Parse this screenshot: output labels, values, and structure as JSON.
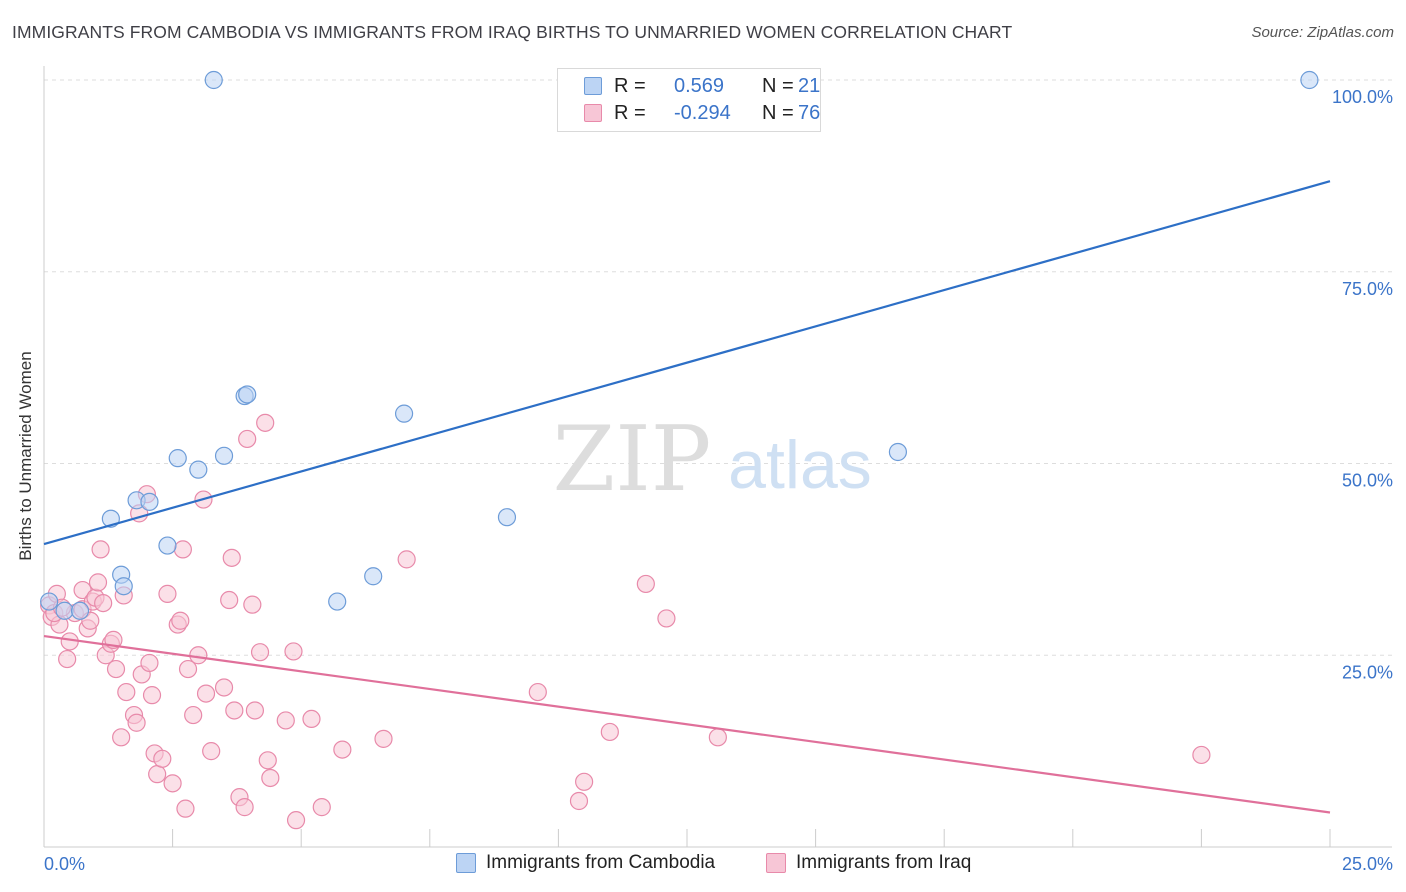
{
  "title": "IMMIGRANTS FROM CAMBODIA VS IMMIGRANTS FROM IRAQ BIRTHS TO UNMARRIED WOMEN CORRELATION CHART",
  "source": "Source: ZipAtlas.com",
  "watermark": {
    "zip": "ZIP",
    "atlas": "atlas"
  },
  "legend": {
    "rows": [
      {
        "r_label": "R =",
        "r_value": "0.569",
        "n_label": "N =",
        "n_value": "21"
      },
      {
        "r_label": "R =",
        "r_value": "-0.294",
        "n_label": "N =",
        "n_value": "76"
      }
    ]
  },
  "bottom_legend": [
    "Immigrants from Cambodia",
    "Immigrants from Iraq"
  ],
  "colors": {
    "cambodia_fill": "#bcd4f4",
    "cambodia_stroke": "#6d9cd8",
    "cambodia_line": "#2d6fc6",
    "iraq_fill": "#f7c6d6",
    "iraq_stroke": "#e88aaa",
    "iraq_line": "#e0709a",
    "value_text": "#3b74c9",
    "grid": "#dddddd"
  },
  "chart_data": {
    "type": "scatter",
    "title": "IMMIGRANTS FROM CAMBODIA VS IMMIGRANTS FROM IRAQ BIRTHS TO UNMARRIED WOMEN CORRELATION CHART",
    "xlabel": "",
    "ylabel": "Births to Unmarried Women",
    "xlim": [
      0,
      25
    ],
    "ylim": [
      0,
      100
    ],
    "x_tick_labels": [
      "0.0%",
      "25.0%"
    ],
    "y_tick_labels": [
      "25.0%",
      "50.0%",
      "75.0%",
      "100.0%"
    ],
    "y_ticks": [
      25,
      50,
      75,
      100
    ],
    "grid": true,
    "legend_position": "top-center",
    "series": [
      {
        "name": "Immigrants from Cambodia",
        "R": 0.569,
        "N": 21,
        "trend": {
          "x": [
            0,
            25
          ],
          "y": [
            39.5,
            86.8
          ]
        },
        "points": [
          {
            "x": 3.3,
            "y": 100
          },
          {
            "x": 24.6,
            "y": 100
          },
          {
            "x": 3.9,
            "y": 58.8
          },
          {
            "x": 3.95,
            "y": 59.0
          },
          {
            "x": 7.0,
            "y": 56.5
          },
          {
            "x": 16.6,
            "y": 51.5
          },
          {
            "x": 2.6,
            "y": 50.7
          },
          {
            "x": 3.5,
            "y": 51.0
          },
          {
            "x": 3.0,
            "y": 49.2
          },
          {
            "x": 1.8,
            "y": 45.2
          },
          {
            "x": 2.05,
            "y": 45.0
          },
          {
            "x": 1.3,
            "y": 42.8
          },
          {
            "x": 9.0,
            "y": 43.0
          },
          {
            "x": 2.4,
            "y": 39.3
          },
          {
            "x": 1.5,
            "y": 35.5
          },
          {
            "x": 1.55,
            "y": 34.0
          },
          {
            "x": 6.4,
            "y": 35.3
          },
          {
            "x": 5.7,
            "y": 32.0
          },
          {
            "x": 0.1,
            "y": 32.0
          },
          {
            "x": 0.4,
            "y": 30.8
          },
          {
            "x": 0.7,
            "y": 30.8
          }
        ]
      },
      {
        "name": "Immigrants from Iraq",
        "R": -0.294,
        "N": 76,
        "trend": {
          "x": [
            0,
            25
          ],
          "y": [
            27.5,
            4.5
          ]
        },
        "points": [
          {
            "x": 0.1,
            "y": 31.5
          },
          {
            "x": 0.15,
            "y": 30.0
          },
          {
            "x": 0.25,
            "y": 33.0
          },
          {
            "x": 0.3,
            "y": 29.0
          },
          {
            "x": 0.45,
            "y": 24.5
          },
          {
            "x": 0.5,
            "y": 26.8
          },
          {
            "x": 0.6,
            "y": 30.5
          },
          {
            "x": 0.75,
            "y": 31.0
          },
          {
            "x": 0.75,
            "y": 33.5
          },
          {
            "x": 0.85,
            "y": 28.5
          },
          {
            "x": 0.9,
            "y": 29.5
          },
          {
            "x": 0.95,
            "y": 32.0
          },
          {
            "x": 1.0,
            "y": 32.5
          },
          {
            "x": 1.05,
            "y": 34.5
          },
          {
            "x": 1.1,
            "y": 38.8
          },
          {
            "x": 1.15,
            "y": 31.8
          },
          {
            "x": 1.2,
            "y": 25.0
          },
          {
            "x": 1.3,
            "y": 26.5
          },
          {
            "x": 1.35,
            "y": 27.0
          },
          {
            "x": 1.4,
            "y": 23.2
          },
          {
            "x": 1.5,
            "y": 14.3
          },
          {
            "x": 1.55,
            "y": 32.8
          },
          {
            "x": 1.6,
            "y": 20.2
          },
          {
            "x": 1.75,
            "y": 17.2
          },
          {
            "x": 1.8,
            "y": 16.2
          },
          {
            "x": 1.85,
            "y": 43.5
          },
          {
            "x": 1.9,
            "y": 22.5
          },
          {
            "x": 2.0,
            "y": 46.0
          },
          {
            "x": 2.05,
            "y": 24.0
          },
          {
            "x": 2.1,
            "y": 19.8
          },
          {
            "x": 2.15,
            "y": 12.2
          },
          {
            "x": 2.2,
            "y": 9.5
          },
          {
            "x": 2.3,
            "y": 11.5
          },
          {
            "x": 2.4,
            "y": 33.0
          },
          {
            "x": 2.5,
            "y": 8.3
          },
          {
            "x": 2.6,
            "y": 29.0
          },
          {
            "x": 2.65,
            "y": 29.5
          },
          {
            "x": 2.7,
            "y": 38.8
          },
          {
            "x": 2.75,
            "y": 5.0
          },
          {
            "x": 2.8,
            "y": 23.2
          },
          {
            "x": 2.9,
            "y": 17.2
          },
          {
            "x": 3.0,
            "y": 25.0
          },
          {
            "x": 3.1,
            "y": 45.3
          },
          {
            "x": 3.15,
            "y": 20.0
          },
          {
            "x": 3.25,
            "y": 12.5
          },
          {
            "x": 3.5,
            "y": 20.8
          },
          {
            "x": 3.6,
            "y": 32.2
          },
          {
            "x": 3.65,
            "y": 37.7
          },
          {
            "x": 3.7,
            "y": 17.8
          },
          {
            "x": 3.8,
            "y": 6.5
          },
          {
            "x": 3.9,
            "y": 5.2
          },
          {
            "x": 3.95,
            "y": 53.2
          },
          {
            "x": 4.05,
            "y": 31.6
          },
          {
            "x": 4.1,
            "y": 17.8
          },
          {
            "x": 4.2,
            "y": 25.4
          },
          {
            "x": 4.3,
            "y": 55.3
          },
          {
            "x": 4.35,
            "y": 11.3
          },
          {
            "x": 4.4,
            "y": 9.0
          },
          {
            "x": 4.7,
            "y": 16.5
          },
          {
            "x": 4.9,
            "y": 3.5
          },
          {
            "x": 4.85,
            "y": 25.5
          },
          {
            "x": 5.2,
            "y": 16.7
          },
          {
            "x": 5.4,
            "y": 5.2
          },
          {
            "x": 5.8,
            "y": 12.7
          },
          {
            "x": 6.6,
            "y": 14.1
          },
          {
            "x": 7.05,
            "y": 37.5
          },
          {
            "x": 9.6,
            "y": 20.2
          },
          {
            "x": 10.4,
            "y": 6.0
          },
          {
            "x": 10.5,
            "y": 8.5
          },
          {
            "x": 11.0,
            "y": 15.0
          },
          {
            "x": 11.7,
            "y": 34.3
          },
          {
            "x": 12.1,
            "y": 29.8
          },
          {
            "x": 13.1,
            "y": 14.3
          },
          {
            "x": 22.5,
            "y": 12.0
          },
          {
            "x": 0.2,
            "y": 30.5
          },
          {
            "x": 0.35,
            "y": 31.2
          }
        ]
      }
    ]
  }
}
